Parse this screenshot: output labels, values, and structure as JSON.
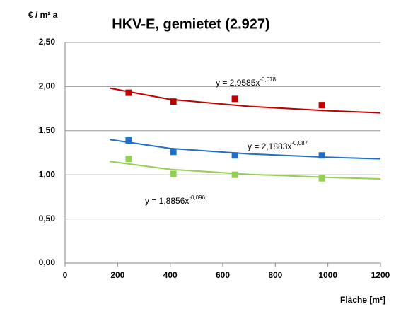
{
  "chart_data": {
    "type": "scatter",
    "title": "HKV-E, gemietet (2.927)",
    "y_label": "€ / m² a",
    "x_label": "Fläche [m²]",
    "xlim": [
      0,
      1200
    ],
    "xticks": [
      0,
      200,
      400,
      600,
      800,
      1000,
      1200
    ],
    "ylim": [
      0,
      2.5
    ],
    "yticks": [
      {
        "value": 0,
        "label": "0,00"
      },
      {
        "value": 0.5,
        "label": "0,50"
      },
      {
        "value": 1,
        "label": "1,00"
      },
      {
        "value": 1.5,
        "label": "1,50"
      },
      {
        "value": 2,
        "label": "2,00"
      },
      {
        "value": 2.5,
        "label": "2,50"
      }
    ],
    "grid": true,
    "series": [
      {
        "color": "#c00000",
        "x": [
          242,
          412,
          646,
          977
        ],
        "values": [
          1.93,
          1.83,
          1.86,
          1.79
        ],
        "trend_x": [
          170,
          400,
          700,
          1000,
          1200
        ],
        "trend_values": [
          1.982,
          1.854,
          1.775,
          1.726,
          1.702
        ],
        "equation": "y = 2,9585x",
        "exponent": "-0,078"
      },
      {
        "color": "#1f6fc5",
        "x": [
          242,
          412,
          646,
          977
        ],
        "values": [
          1.39,
          1.26,
          1.22,
          1.22
        ],
        "trend_x": [
          170,
          400,
          700,
          1000,
          1200
        ],
        "trend_values": [
          1.4,
          1.299,
          1.237,
          1.199,
          1.181
        ],
        "equation": "y = 2,1883x",
        "exponent": "-0,087"
      },
      {
        "color": "#92d050",
        "x": [
          242,
          412,
          646,
          977
        ],
        "values": [
          1.18,
          1.01,
          1.0,
          0.96
        ],
        "trend_x": [
          170,
          400,
          700,
          1000,
          1200
        ],
        "trend_values": [
          1.152,
          1.061,
          1.005,
          0.971,
          0.954
        ],
        "equation": "y = 1,8856x",
        "exponent": "-0,096"
      }
    ]
  }
}
